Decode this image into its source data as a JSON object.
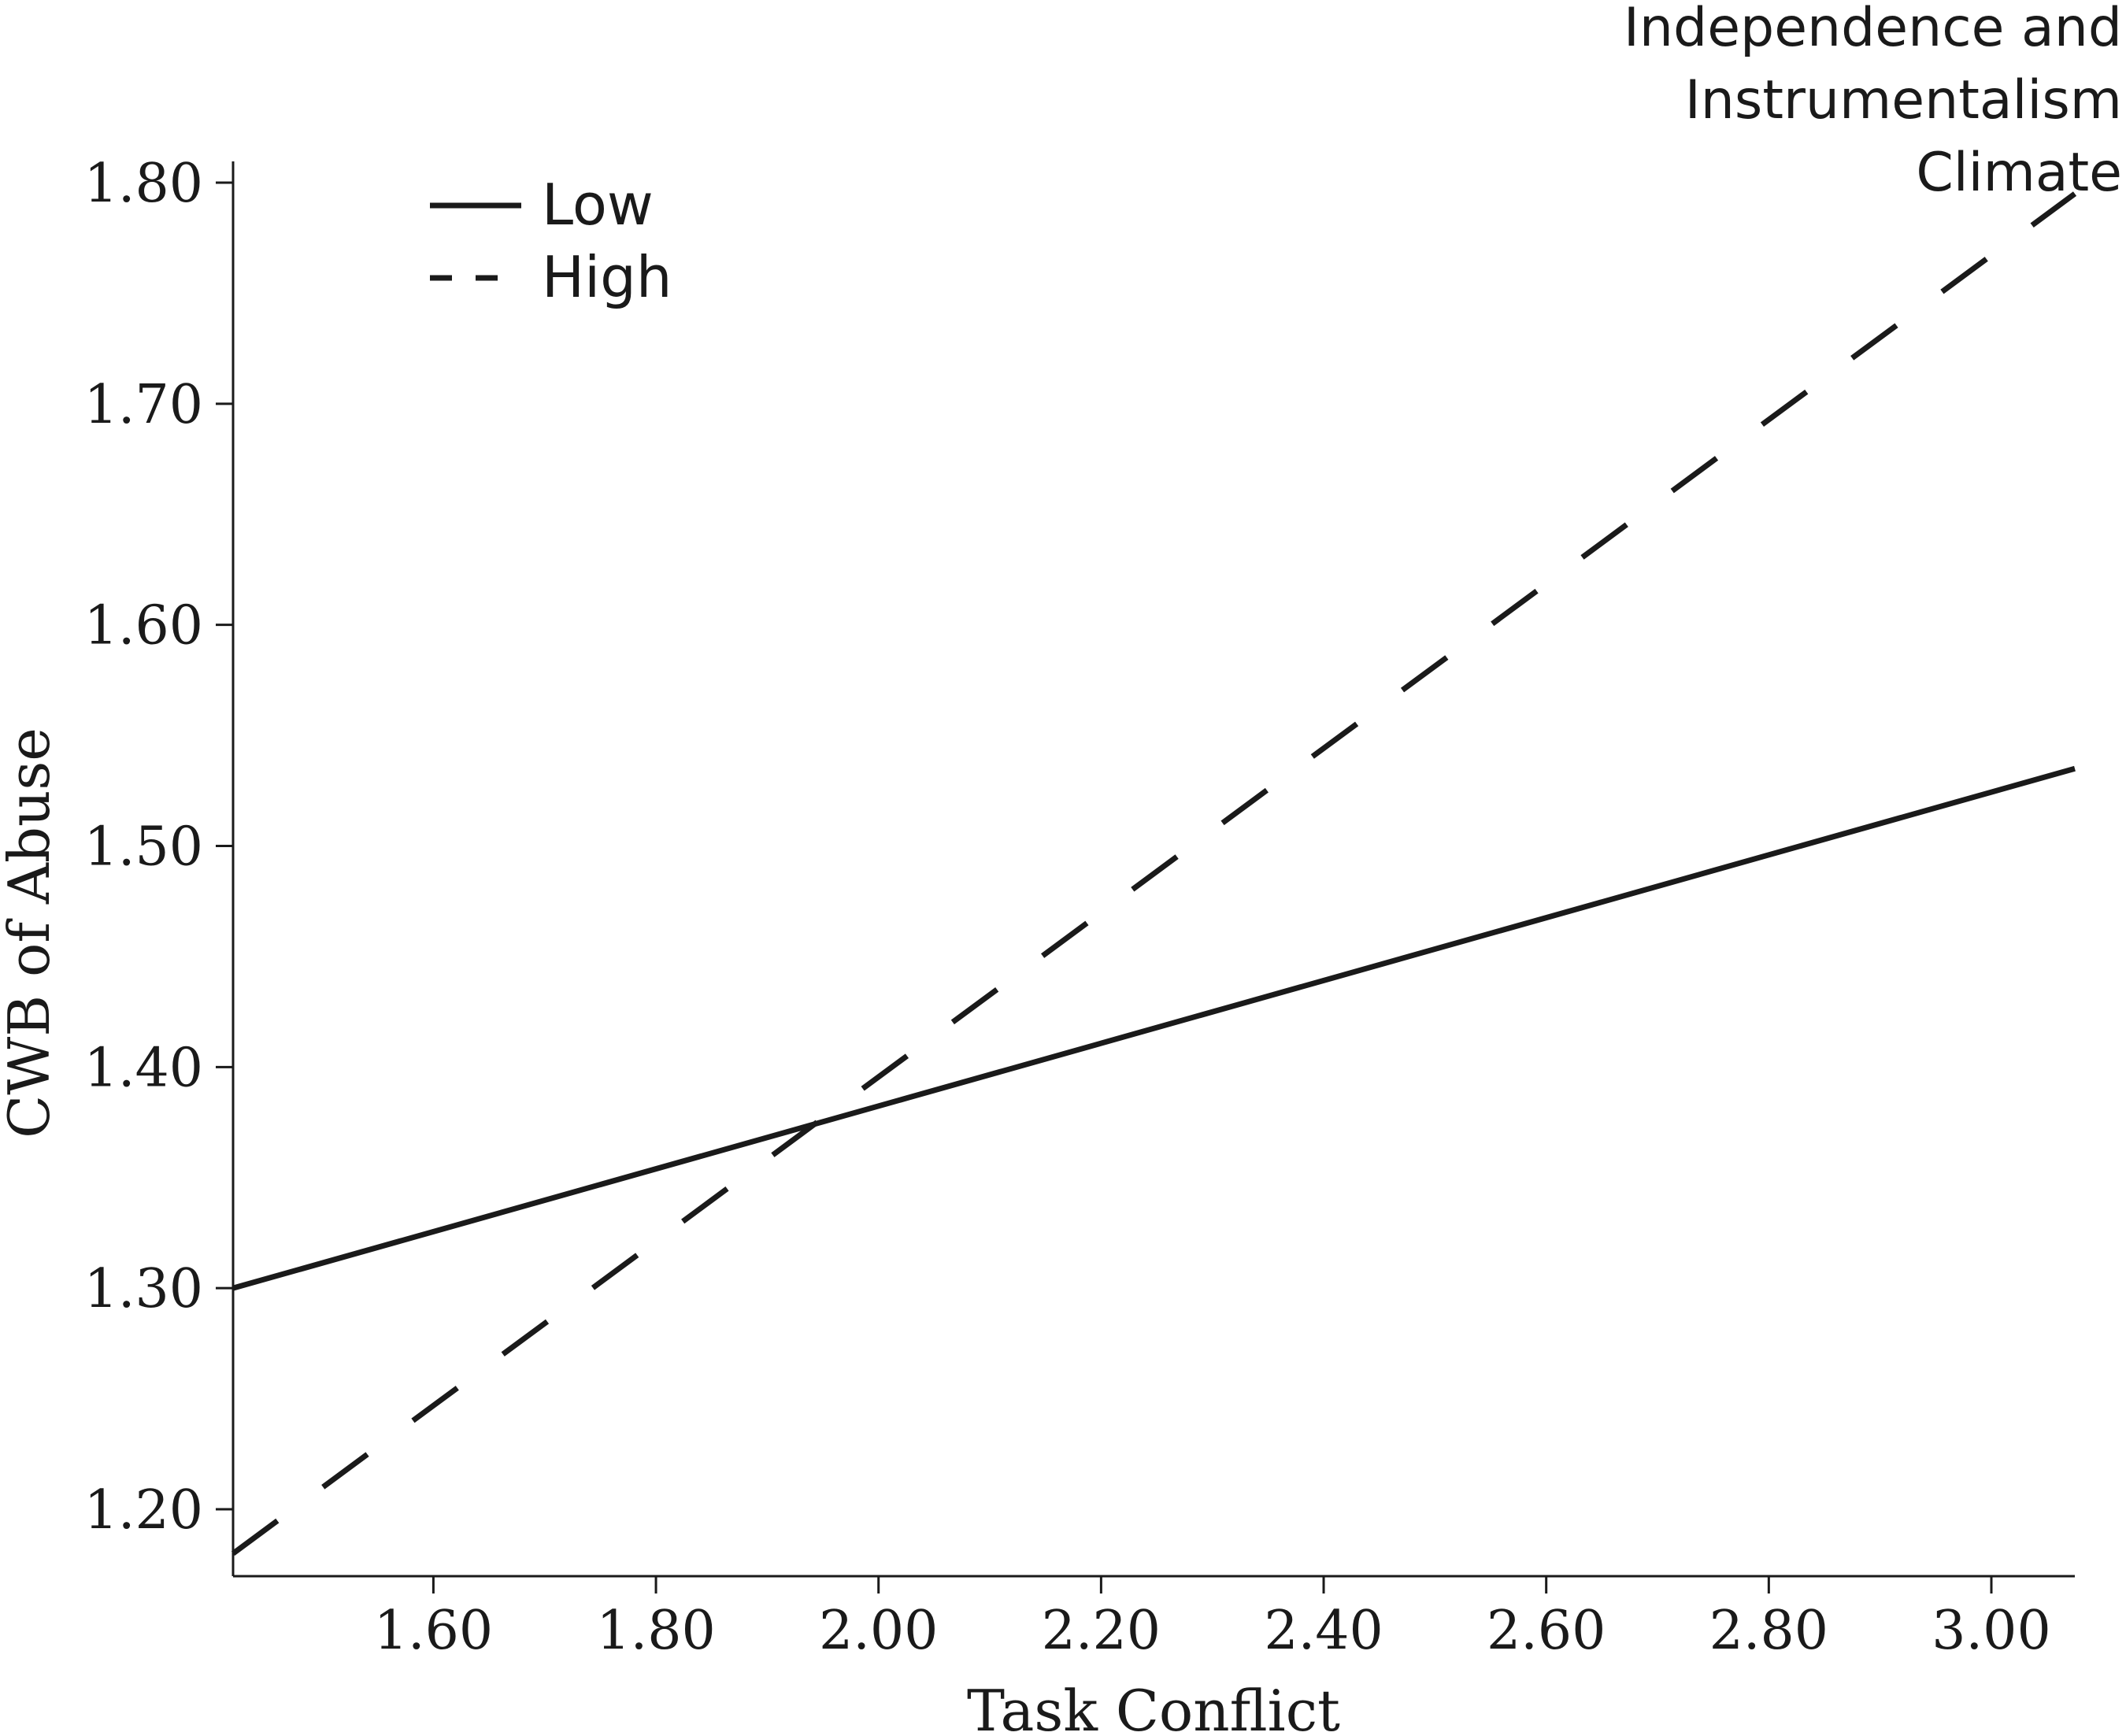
{
  "chart_data": {
    "type": "line",
    "xlabel": "Task Conflict",
    "ylabel": "CWB of Abuse",
    "xlim": [
      1.42,
      3.075
    ],
    "ylim": [
      1.17,
      1.83
    ],
    "x_ticks": [
      1.6,
      1.8,
      2.0,
      2.2,
      2.4,
      2.6,
      2.8,
      3.0
    ],
    "x_tick_labels": [
      "1.60",
      "1.80",
      "2.00",
      "2.20",
      "2.40",
      "2.60",
      "2.80",
      "3.00"
    ],
    "y_ticks": [
      1.2,
      1.3,
      1.4,
      1.5,
      1.6,
      1.7,
      1.8
    ],
    "y_tick_labels": [
      "1.20",
      "1.30",
      "1.40",
      "1.50",
      "1.60",
      "1.70",
      "1.80"
    ],
    "legend_title": [
      "Independence and",
      "Instrumentalism",
      "Climate"
    ],
    "legend_position": "top-left",
    "grid": false,
    "colors": {
      "line": "#1a1a1a"
    },
    "series": [
      {
        "name": "Low",
        "style": "solid",
        "x": [
          1.42,
          3.075
        ],
        "y": [
          1.3,
          1.535
        ]
      },
      {
        "name": "High",
        "style": "dashed",
        "x": [
          1.42,
          3.075
        ],
        "y": [
          1.18,
          1.795
        ]
      }
    ]
  }
}
